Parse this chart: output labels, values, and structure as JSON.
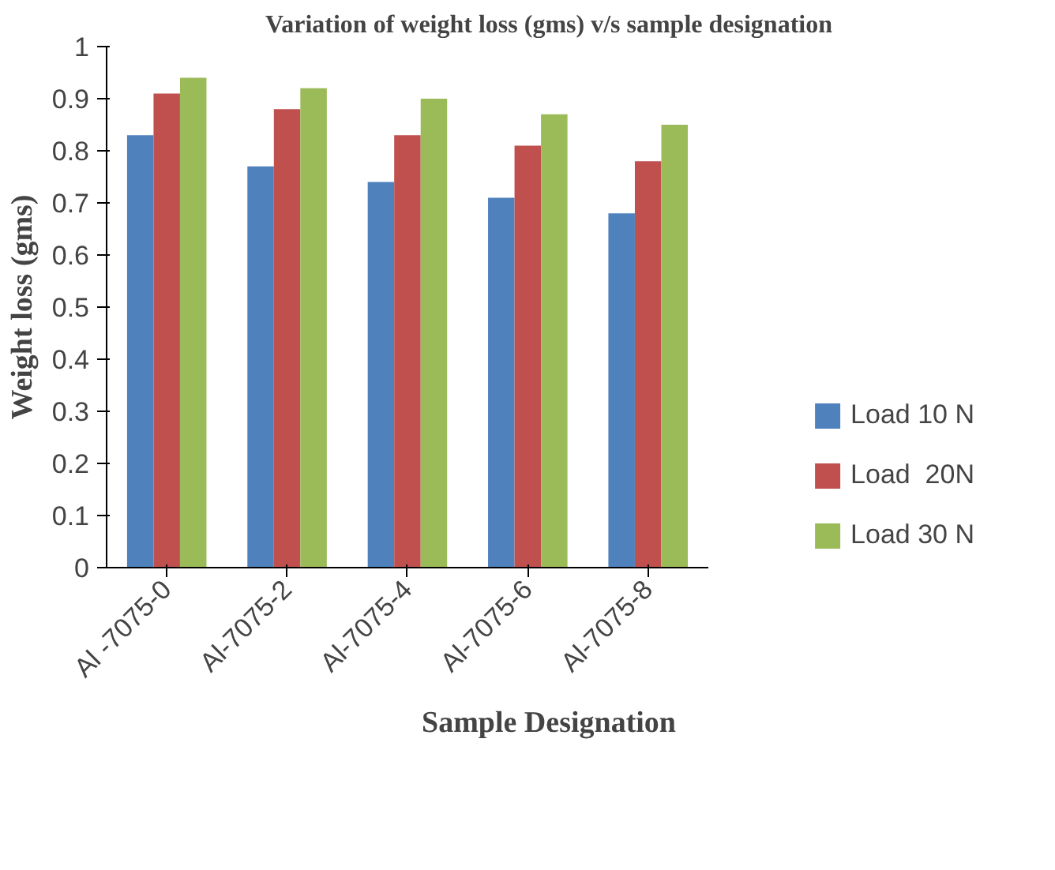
{
  "chart_data": {
    "type": "bar",
    "title": "Variation of weight loss (gms) v/s sample designation",
    "xlabel": "Sample Designation",
    "ylabel": "Weight loss (gms)",
    "categories": [
      "Al -7075-0",
      "Al-7075-2",
      "Al-7075-4",
      "Al-7075-6",
      "Al-7075-8"
    ],
    "series": [
      {
        "name": "Load 10 N",
        "color": "#4f81bd",
        "values": [
          0.83,
          0.77,
          0.74,
          0.71,
          0.68
        ]
      },
      {
        "name": "Load  20N",
        "color": "#c0504d",
        "values": [
          0.91,
          0.88,
          0.83,
          0.81,
          0.78
        ]
      },
      {
        "name": "Load 30 N",
        "color": "#9bbb59",
        "values": [
          0.94,
          0.92,
          0.9,
          0.87,
          0.85
        ]
      }
    ],
    "ylim": [
      0,
      1
    ],
    "yticks": [
      0,
      0.1,
      0.2,
      0.3,
      0.4,
      0.5,
      0.6,
      0.7,
      0.8,
      0.9,
      1
    ],
    "legend": "right"
  }
}
